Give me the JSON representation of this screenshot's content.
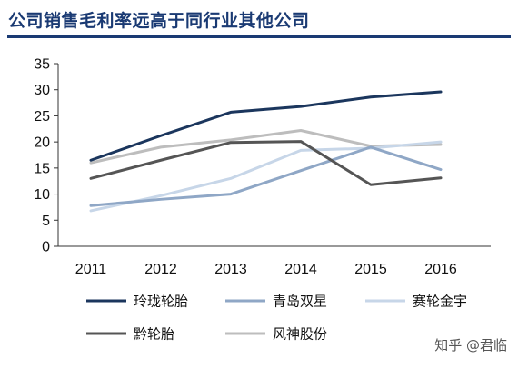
{
  "header": {
    "title": "公司销售毛利率远高于同行业其他公司"
  },
  "watermark": "知乎 @君临",
  "chart_data": {
    "type": "line",
    "title": "公司销售毛利率远高于同行业其他公司",
    "categories": [
      "2011",
      "2012",
      "2013",
      "2014",
      "2015",
      "2016"
    ],
    "ylim": [
      0,
      35
    ],
    "yticks": [
      0,
      5,
      10,
      15,
      20,
      25,
      30,
      35
    ],
    "grid": false,
    "legend": "bottom",
    "series": [
      {
        "name": "玲珑轮胎",
        "color": "#1b365d",
        "values": [
          16.5,
          21.2,
          25.7,
          26.8,
          28.6,
          29.6
        ]
      },
      {
        "name": "青岛双星",
        "color": "#8fa7c6",
        "values": [
          7.8,
          9.0,
          10.0,
          14.5,
          19.0,
          14.7
        ]
      },
      {
        "name": "赛轮金宇",
        "color": "#c7d6e8",
        "values": [
          6.8,
          9.7,
          13.0,
          18.4,
          18.8,
          20.0
        ]
      },
      {
        "name": "黔轮胎",
        "color": "#555555",
        "values": [
          13.0,
          16.5,
          19.9,
          20.1,
          11.8,
          13.1
        ]
      },
      {
        "name": "风神股份",
        "color": "#bdbdbd",
        "values": [
          16.0,
          19.0,
          20.4,
          22.2,
          19.2,
          19.5
        ]
      }
    ]
  }
}
